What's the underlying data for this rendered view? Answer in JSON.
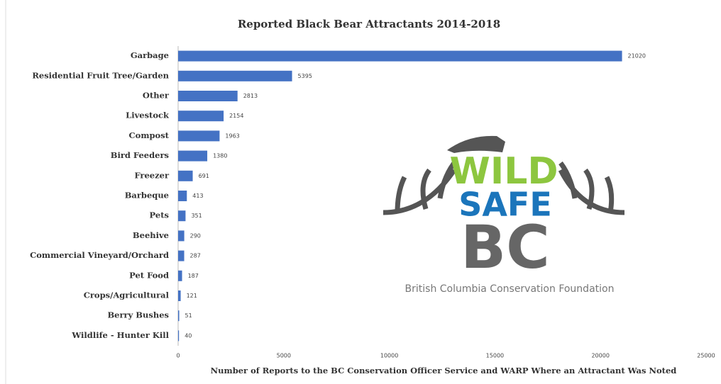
{
  "chart_data": {
    "type": "barh",
    "title": "Reported Black Bear Attractants 2014-2018",
    "xlabel": "Number of Reports to the BC Conservation Officer Service and WARP Where an Attractant Was Noted",
    "categories": [
      "Garbage",
      "Residential Fruit Tree/Garden",
      "Other",
      "Livestock",
      "Compost",
      "Bird Feeders",
      "Freezer",
      "Barbeque",
      "Pets",
      "Beehive",
      "Commercial Vineyard/Orchard",
      "Pet Food",
      "Crops/Agricultural",
      "Berry Bushes",
      "Wildlife - Hunter Kill"
    ],
    "values": [
      21020,
      5395,
      2813,
      2154,
      1963,
      1380,
      691,
      413,
      351,
      290,
      287,
      187,
      121,
      51,
      40
    ],
    "color": "#4472c4",
    "xlim": [
      0,
      25000
    ],
    "xticks": [
      0,
      5000,
      10000,
      15000,
      20000,
      25000
    ],
    "grid": false
  },
  "logo": {
    "lines": [
      "WILD",
      "SAFE",
      "BC"
    ],
    "caption": "British Columbia Conservation Foundation"
  }
}
